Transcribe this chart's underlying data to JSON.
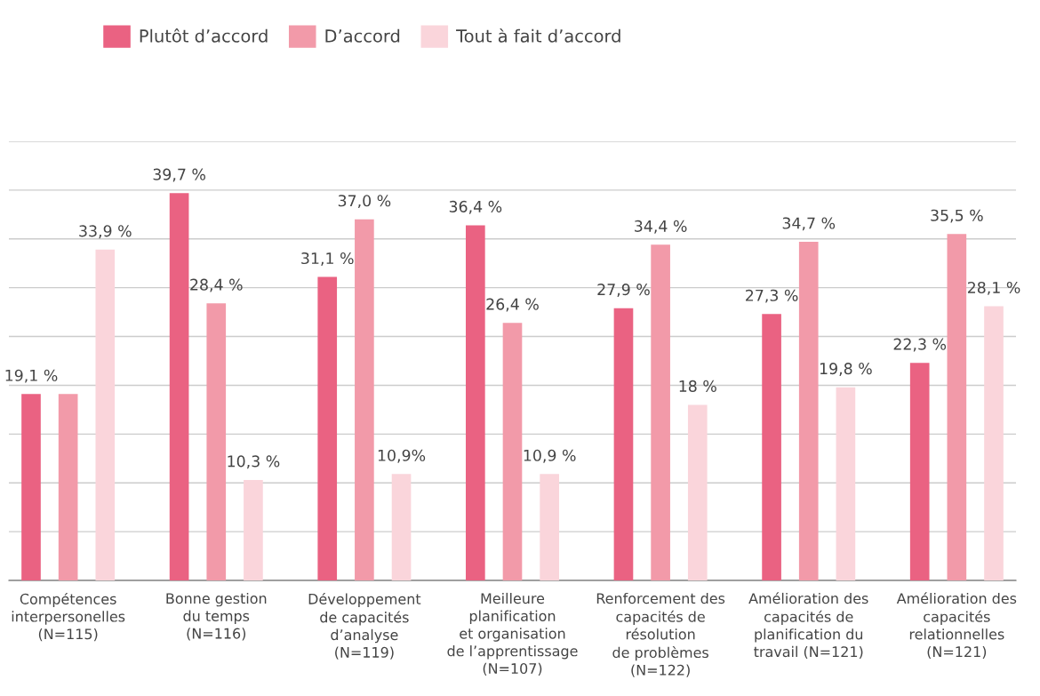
{
  "chart_data": {
    "type": "bar",
    "categories": [
      "Compétences\ninterpersonelles\n(N=115)",
      "Bonne gestion\ndu temps\n(N=116)",
      "Développement\nde capacités\nd’analyse\n(N=119)",
      "Meilleure\nplanification\net organisation\nde l’apprentissage\n(N=107)",
      "Renforcement des\ncapacités de\nrésolution\nde problèmes\n(N=122)",
      "Amélioration des\ncapacités de\nplanification du\ntravail (N=121)",
      "Amélioration des\ncapacités\nrelationnelles\n(N=121)"
    ],
    "series": [
      {
        "name": "Plutôt d’accord",
        "color": "#ea6282",
        "values": [
          19.1,
          39.7,
          31.1,
          36.4,
          27.9,
          27.3,
          22.3
        ],
        "value_labels": [
          "19,1 %",
          "39,7 %",
          "31,1 %",
          "36,4 %",
          "27,9 %",
          "27,3 %",
          "22,3 %"
        ]
      },
      {
        "name": "D’accord",
        "color": "#f29aa9",
        "values": [
          19.1,
          28.4,
          37.0,
          26.4,
          34.4,
          34.7,
          35.5
        ],
        "value_labels": [
          null,
          "28,4 %",
          "37,0 %",
          "26,4 %",
          "34,4 %",
          "34,7 %",
          "35,5 %"
        ]
      },
      {
        "name": "Tout à fait d’accord",
        "color": "#fad5db",
        "values": [
          33.9,
          10.3,
          10.9,
          10.9,
          18,
          19.8,
          28.1
        ],
        "value_labels": [
          "33,9 %",
          "10,3 %",
          "10,9%",
          "10,9 %",
          "18 %",
          "19,8 %",
          "28,1 %"
        ]
      }
    ],
    "ylim": [
      0,
      45
    ],
    "yticks": [
      {
        "value": 0,
        "label": null
      },
      {
        "value": 5,
        "label": null
      },
      {
        "value": 10,
        "label": null
      },
      {
        "value": 15,
        "label": null
      },
      {
        "value": 20,
        "label": null
      },
      {
        "value": 25,
        "label": null
      },
      {
        "value": 30,
        "label": null
      },
      {
        "value": 35,
        "label": null
      },
      {
        "value": 40,
        "label": null
      },
      {
        "value": 45,
        "label": null
      }
    ],
    "grid": "y",
    "legend": "top",
    "tick_labels": "x"
  }
}
